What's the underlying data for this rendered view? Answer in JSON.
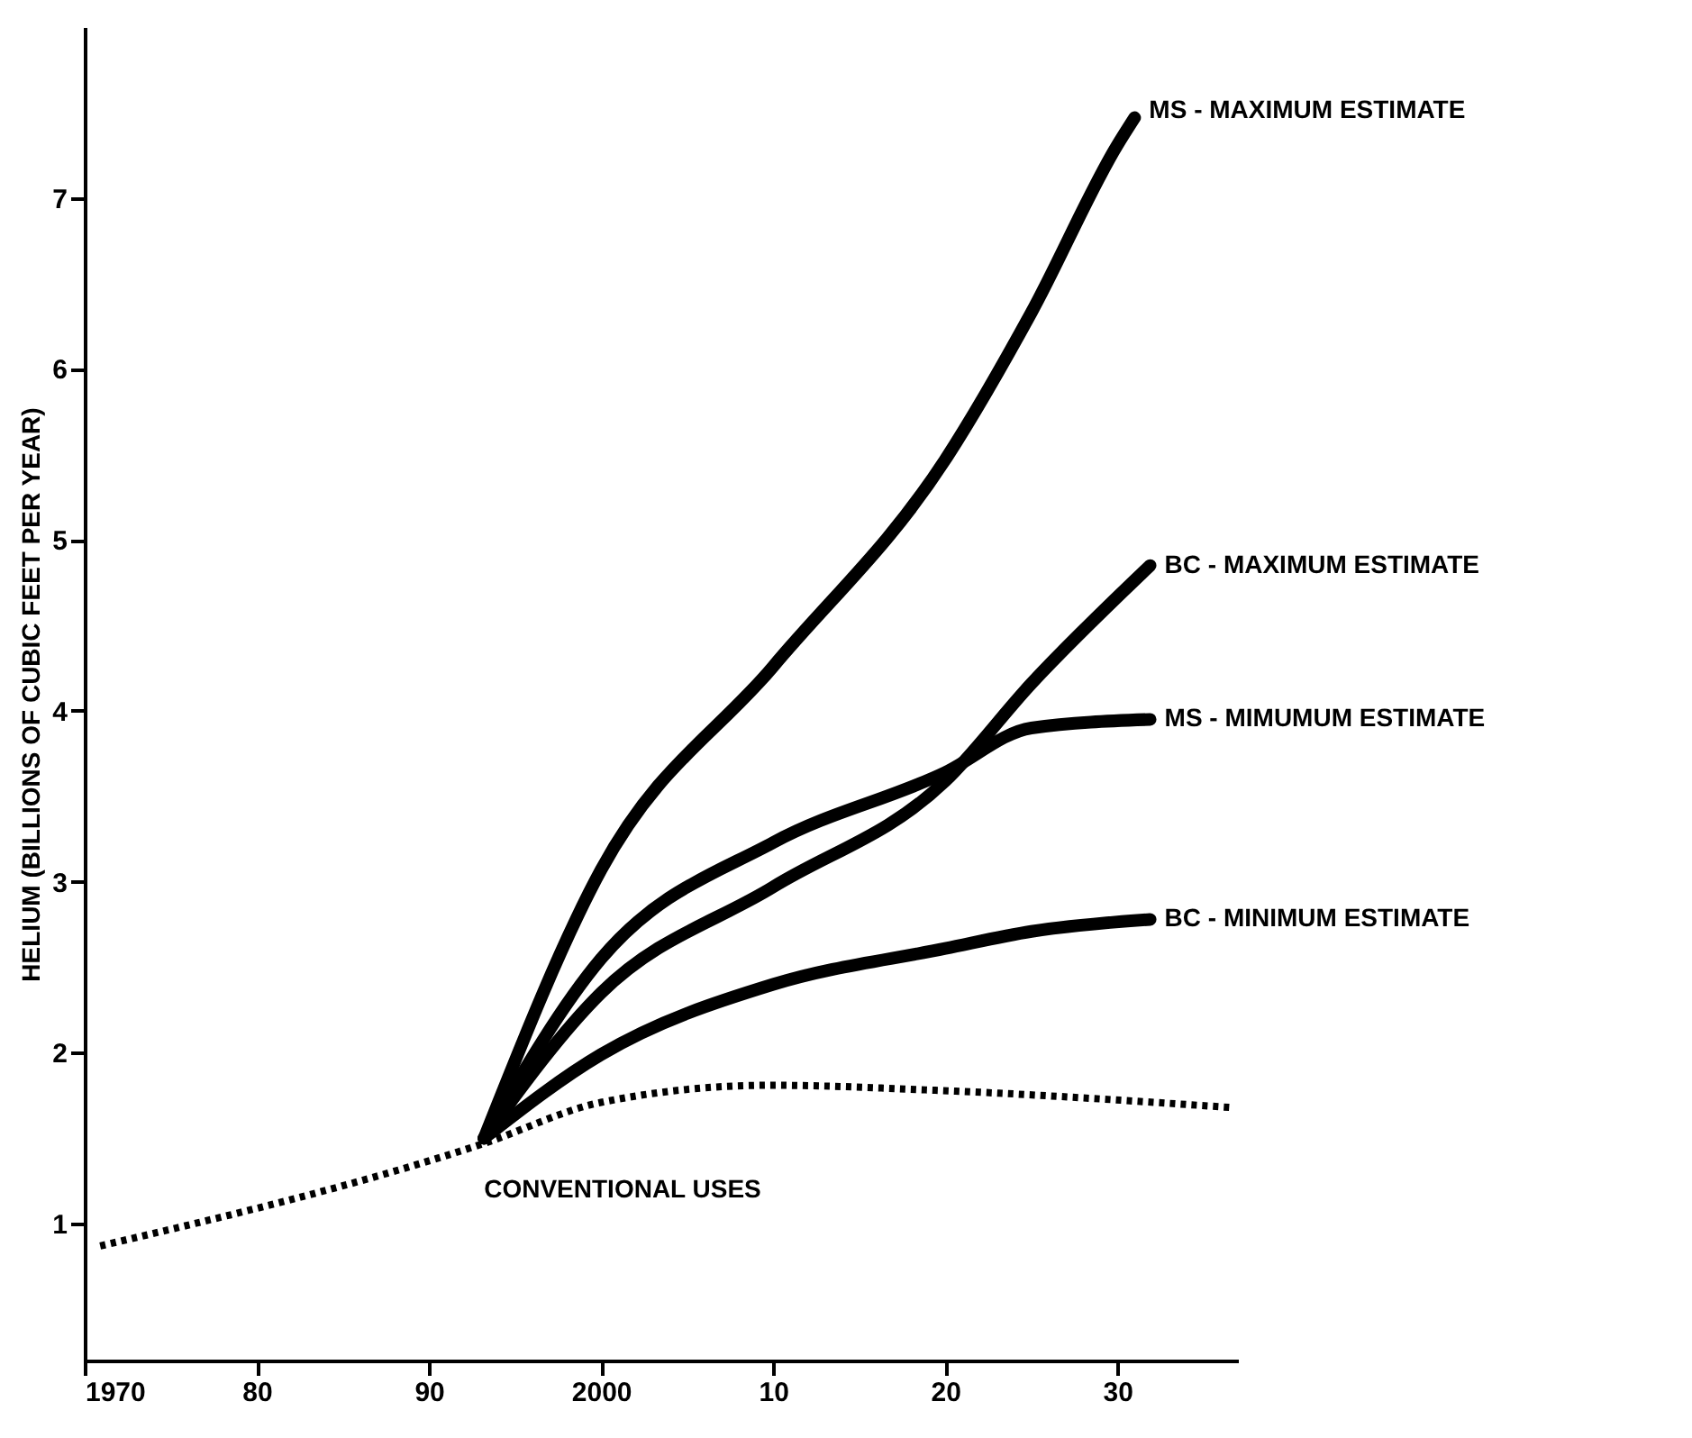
{
  "chart_data": {
    "type": "line",
    "ylabel": "HELIUM (BILLIONS OF CUBIC FEET PER YEAR)",
    "xlim": [
      1970,
      2037
    ],
    "xticks": [
      {
        "value": 1970,
        "label": "1970"
      },
      {
        "value": 1980,
        "label": "80"
      },
      {
        "value": 1990,
        "label": "90"
      },
      {
        "value": 2000,
        "label": "2000"
      },
      {
        "value": 2010,
        "label": "10"
      },
      {
        "value": 2020,
        "label": "20"
      },
      {
        "value": 2030,
        "label": "30"
      }
    ],
    "ylim": [
      0.2,
      8.0
    ],
    "yticks": [
      {
        "value": 1,
        "label": "1"
      },
      {
        "value": 2,
        "label": "2"
      },
      {
        "value": 3,
        "label": "3"
      },
      {
        "value": 4,
        "label": "4"
      },
      {
        "value": 5,
        "label": "5"
      },
      {
        "value": 6,
        "label": "6"
      },
      {
        "value": 7,
        "label": "7"
      }
    ],
    "grid": false,
    "legend": false,
    "marker": "none",
    "series": [
      {
        "name": "MS - MAXIMUM ESTIMATE",
        "color": "#000000",
        "line_style": "solid",
        "x": [
          1993.2,
          2000,
          2010,
          2020,
          2025,
          2030,
          2031
        ],
        "values": [
          1.5,
          3.07,
          4.26,
          5.47,
          6.33,
          7.31,
          7.47
        ]
      },
      {
        "name": "BC - MAXIMUM ESTIMATE",
        "color": "#000000",
        "line_style": "solid",
        "x": [
          1993.2,
          2000,
          2010,
          2020,
          2025,
          2031.9
        ],
        "values": [
          1.5,
          2.35,
          2.97,
          3.59,
          4.16,
          4.85
        ]
      },
      {
        "name": "MS - MIMUMUM ESTIMATE",
        "color": "#000000",
        "line_style": "solid",
        "x": [
          1993.2,
          2000,
          2010,
          2020,
          2025,
          2031.9
        ],
        "values": [
          1.5,
          2.55,
          3.23,
          3.64,
          3.9,
          3.95
        ]
      },
      {
        "name": "BC - MINIMUM ESTIMATE",
        "color": "#000000",
        "line_style": "solid",
        "x": [
          1993.2,
          2000,
          2010,
          2020,
          2025,
          2031.9
        ],
        "values": [
          1.5,
          1.99,
          2.4,
          2.61,
          2.71,
          2.78
        ]
      },
      {
        "name": "CONVENTIONAL USES",
        "color": "#000000",
        "line_style": "dotted",
        "x": [
          1970.9,
          1993.2,
          2000,
          2009.8,
          2019.6,
          2036.6
        ],
        "values": [
          0.87,
          1.47,
          1.71,
          1.81,
          1.78,
          1.68
        ]
      }
    ]
  }
}
